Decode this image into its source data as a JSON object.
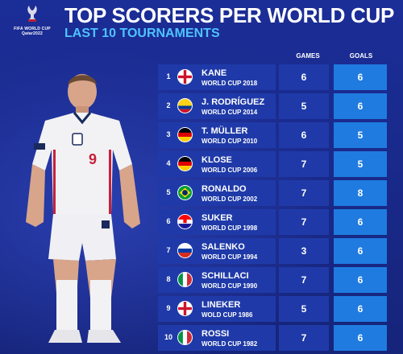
{
  "header": {
    "title": "TOP SCORERS PER WORLD CUP",
    "subtitle": "LAST 10 TOURNAMENTS",
    "logo_line1": "FIFA WORLD CUP",
    "logo_line2": "Qatar2022"
  },
  "columns": {
    "games": "GAMES",
    "goals": "GOALS"
  },
  "colors": {
    "background": "#1a2a8c",
    "row": "#1f3aa8",
    "goals_cell": "#1f7be0",
    "subtitle": "#4fc3ff"
  },
  "rows": [
    {
      "rank": "1",
      "name": "KANE",
      "cup": "WORLD CUP 2018",
      "games": "6",
      "goals": "6",
      "flag": "england"
    },
    {
      "rank": "2",
      "name": "J. RODRÍGUEZ",
      "cup": "WORLD CUP 2014",
      "games": "5",
      "goals": "6",
      "flag": "colombia"
    },
    {
      "rank": "3",
      "name": "T. MÜLLER",
      "cup": "WORLD CUP 2010",
      "games": "6",
      "goals": "5",
      "flag": "germany"
    },
    {
      "rank": "4",
      "name": "KLOSE",
      "cup": "WORLD CUP 2006",
      "games": "7",
      "goals": "5",
      "flag": "germany"
    },
    {
      "rank": "5",
      "name": "RONALDO",
      "cup": "WORLD CUP 2002",
      "games": "7",
      "goals": "8",
      "flag": "brazil"
    },
    {
      "rank": "6",
      "name": "SUKER",
      "cup": "WORLD CUP 1998",
      "games": "7",
      "goals": "6",
      "flag": "croatia"
    },
    {
      "rank": "7",
      "name": "SALENKO",
      "cup": "WORLD CUP 1994",
      "games": "3",
      "goals": "6",
      "flag": "russia"
    },
    {
      "rank": "8",
      "name": "SCHILLACI",
      "cup": "WORLD CUP 1990",
      "games": "7",
      "goals": "6",
      "flag": "italy"
    },
    {
      "rank": "9",
      "name": "LINEKER",
      "cup": "WOLD CUP 1986",
      "games": "5",
      "goals": "6",
      "flag": "england"
    },
    {
      "rank": "10",
      "name": "ROSSI",
      "cup": "WORLD CUP 1982",
      "games": "7",
      "goals": "6",
      "flag": "italy"
    }
  ],
  "player": {
    "shirt_number": "9"
  }
}
